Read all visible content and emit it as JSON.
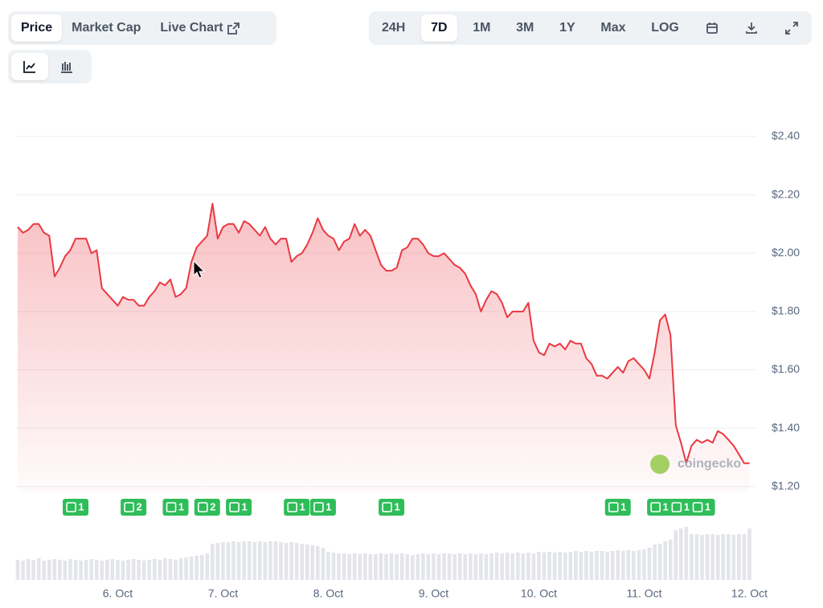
{
  "tabs": {
    "views": [
      "Price",
      "Market Cap",
      "Live Chart"
    ],
    "active_view": 0,
    "ranges": [
      "24H",
      "7D",
      "1M",
      "3M",
      "1Y",
      "Max",
      "LOG"
    ],
    "active_range": 1
  },
  "chart_data": {
    "type": "area",
    "categories": [
      null,
      null,
      null,
      null,
      null,
      null,
      null,
      null,
      null,
      null,
      null,
      null,
      null,
      null,
      null,
      null,
      null,
      null,
      null,
      "6. Oct",
      null,
      null,
      null,
      null,
      null,
      null,
      null,
      null,
      null,
      null,
      null,
      null,
      null,
      null,
      null,
      null,
      null,
      null,
      null,
      "7. Oct",
      null,
      null,
      null,
      null,
      null,
      null,
      null,
      null,
      null,
      null,
      null,
      null,
      null,
      null,
      null,
      null,
      null,
      null,
      null,
      "8. Oct",
      null,
      null,
      null,
      null,
      null,
      null,
      null,
      null,
      null,
      null,
      null,
      null,
      null,
      null,
      null,
      null,
      null,
      null,
      null,
      "9. Oct",
      null,
      null,
      null,
      null,
      null,
      null,
      null,
      null,
      null,
      null,
      null,
      null,
      null,
      null,
      null,
      null,
      null,
      null,
      null,
      "10. Oct",
      null,
      null,
      null,
      null,
      null,
      null,
      null,
      null,
      null,
      null,
      null,
      null,
      null,
      null,
      null,
      null,
      null,
      null,
      null,
      "11. Oct",
      null,
      null,
      null,
      null,
      null,
      null,
      null,
      null,
      null,
      null,
      null,
      null,
      null,
      null,
      null,
      null,
      null,
      null,
      null,
      "12. Oct"
    ],
    "values": [
      2.09,
      2.07,
      2.08,
      2.1,
      2.1,
      2.07,
      2.06,
      1.92,
      1.95,
      1.99,
      2.01,
      2.05,
      2.05,
      2.05,
      2.0,
      2.01,
      1.88,
      1.86,
      1.84,
      1.82,
      1.85,
      1.84,
      1.84,
      1.82,
      1.82,
      1.85,
      1.87,
      1.9,
      1.89,
      1.91,
      1.85,
      1.86,
      1.88,
      1.97,
      2.02,
      2.04,
      2.06,
      2.17,
      2.05,
      2.09,
      2.1,
      2.1,
      2.07,
      2.11,
      2.1,
      2.08,
      2.06,
      2.09,
      2.05,
      2.03,
      2.05,
      2.05,
      1.97,
      1.99,
      2.0,
      2.03,
      2.07,
      2.12,
      2.08,
      2.06,
      2.05,
      2.01,
      2.04,
      2.05,
      2.1,
      2.06,
      2.08,
      2.06,
      2.01,
      1.96,
      1.94,
      1.94,
      1.95,
      2.01,
      2.02,
      2.05,
      2.05,
      2.03,
      2.0,
      1.99,
      1.99,
      2.0,
      1.98,
      1.96,
      1.95,
      1.93,
      1.89,
      1.86,
      1.8,
      1.84,
      1.87,
      1.86,
      1.83,
      1.78,
      1.8,
      1.8,
      1.8,
      1.83,
      1.7,
      1.66,
      1.65,
      1.69,
      1.68,
      1.69,
      1.67,
      1.7,
      1.69,
      1.69,
      1.64,
      1.62,
      1.58,
      1.58,
      1.57,
      1.59,
      1.61,
      1.59,
      1.63,
      1.64,
      1.62,
      1.6,
      1.57,
      1.66,
      1.77,
      1.79,
      1.72,
      1.41,
      1.35,
      1.28,
      1.34,
      1.36,
      1.35,
      1.36,
      1.35,
      1.39,
      1.38,
      1.36,
      1.34,
      1.31,
      1.28,
      1.28
    ],
    "color": "#ea3943",
    "ylim": [
      1.18,
      2.5
    ],
    "yticks": [
      {
        "value": 1.2,
        "label": "$1.20"
      },
      {
        "value": 1.4,
        "label": "$1.40"
      },
      {
        "value": 1.6,
        "label": "$1.60"
      },
      {
        "value": 1.8,
        "label": "$1.80"
      },
      {
        "value": 2.0,
        "label": "$2.00"
      },
      {
        "value": 2.2,
        "label": "$2.20"
      },
      {
        "value": 2.4,
        "label": "$2.40"
      }
    ],
    "grid": true,
    "volume": [
      25,
      24,
      26,
      25,
      27,
      24,
      25,
      26,
      25,
      24,
      26,
      25,
      24,
      25,
      26,
      25,
      24,
      25,
      26,
      25,
      24,
      25,
      26,
      25,
      24,
      25,
      26,
      25,
      27,
      26,
      25,
      27,
      28,
      29,
      30,
      31,
      33,
      45,
      46,
      47,
      47,
      48,
      47,
      48,
      48,
      47,
      48,
      47,
      48,
      48,
      47,
      46,
      47,
      46,
      45,
      44,
      43,
      42,
      40,
      35,
      34,
      33,
      33,
      32,
      33,
      32,
      33,
      32,
      32,
      33,
      32,
      33,
      32,
      33,
      32,
      31,
      32,
      33,
      32,
      33,
      32,
      33,
      33,
      32,
      33,
      32,
      33,
      32,
      33,
      32,
      33,
      34,
      33,
      34,
      33,
      34,
      33,
      34,
      33,
      35,
      34,
      35,
      34,
      35,
      34,
      35,
      36,
      35,
      36,
      35,
      36,
      36,
      35,
      36,
      37,
      36,
      37,
      36,
      37,
      38,
      40,
      44,
      45,
      48,
      50,
      62,
      64,
      66,
      57,
      57,
      56,
      57,
      57,
      56,
      57,
      57,
      56,
      57,
      57,
      64
    ],
    "volume_color": "#e3e5ea",
    "news": [
      {
        "at": 11,
        "count": 1
      },
      {
        "at": 22,
        "count": 2
      },
      {
        "at": 30,
        "count": 1
      },
      {
        "at": 36,
        "count": 2
      },
      {
        "at": 42,
        "count": 1
      },
      {
        "at": 53,
        "count": 1
      },
      {
        "at": 58,
        "count": 1
      },
      {
        "at": 71,
        "count": 1
      },
      {
        "at": 114,
        "count": 1
      },
      {
        "at": 122,
        "count": 1
      },
      {
        "at": 126,
        "count": 1
      },
      {
        "at": 130,
        "count": 1
      }
    ],
    "news_color": "#2fbd5a",
    "watermark": "coingecko"
  }
}
